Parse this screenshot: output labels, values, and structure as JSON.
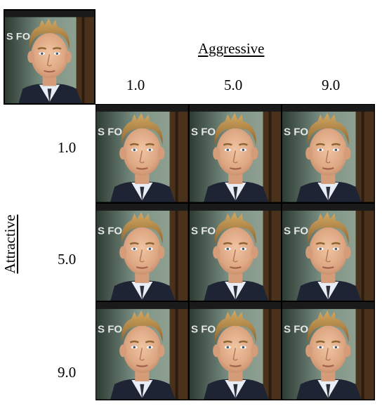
{
  "x_axis": {
    "title": "Aggressive",
    "ticks": [
      "1.0",
      "5.0",
      "9.0"
    ]
  },
  "y_axis": {
    "title": "Attractive",
    "ticks": [
      "1.0",
      "5.0",
      "9.0"
    ]
  },
  "images": {
    "reference": "face-photo",
    "grid_rows": 3,
    "grid_cols": 3
  },
  "colors": {
    "background_left": "#3a4a3c",
    "background_mid": "#7a8f80",
    "wood": "#5a3a1c",
    "hair": "#b58a48",
    "skin": "#e0b090",
    "suit": "#1e2433",
    "shirt": "#e8eef5"
  }
}
